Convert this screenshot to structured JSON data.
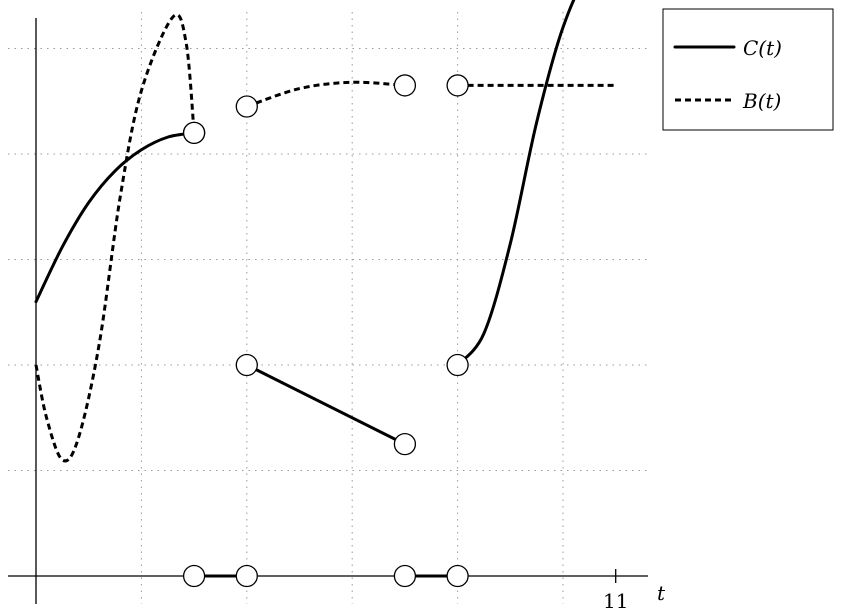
{
  "chart_data": {
    "type": "line",
    "title": "",
    "xlabel": "t",
    "ylabel": "",
    "xlim": [
      -0.5,
      11.6
    ],
    "ylim": [
      -0.6,
      5.8
    ],
    "x_ticks": [
      {
        "value": 11,
        "label": "11"
      }
    ],
    "grid": true,
    "legend": "top-right",
    "series": [
      {
        "name": "C(t)",
        "style": "solid",
        "color": "#000000",
        "segments": [
          {
            "points": [
              [
                0,
                2.6
              ],
              [
                0.5,
                3.12
              ],
              [
                1,
                3.54
              ],
              [
                1.5,
                3.84
              ],
              [
                2,
                4.04
              ],
              [
                2.5,
                4.16
              ],
              [
                3,
                4.2
              ]
            ],
            "end_marker": "open"
          },
          {
            "points": [
              [
                4,
                2.0
              ],
              [
                7,
                1.25
              ]
            ],
            "start_marker": "open",
            "end_marker": "open"
          },
          {
            "points": [
              [
                8,
                2.0
              ],
              [
                8.5,
                2.3
              ],
              [
                9,
                3.15
              ],
              [
                9.5,
                4.3
              ],
              [
                10,
                5.2
              ],
              [
                10.5,
                5.72
              ],
              [
                11,
                5.8
              ]
            ],
            "start_marker": "open"
          },
          {
            "points": [
              [
                3,
                0
              ],
              [
                4,
                0
              ]
            ],
            "start_marker": "open",
            "end_marker": "open"
          },
          {
            "points": [
              [
                7,
                0
              ],
              [
                8,
                0
              ]
            ],
            "start_marker": "open",
            "end_marker": "open"
          }
        ]
      },
      {
        "name": "B(t)",
        "style": "dashed",
        "color": "#000000",
        "segments": [
          {
            "points": [
              [
                0,
                2.0
              ],
              [
                0.2,
                1.5
              ],
              [
                0.5,
                1.1
              ],
              [
                0.8,
                1.3
              ],
              [
                1.2,
                2.2
              ],
              [
                1.6,
                3.6
              ],
              [
                2,
                4.6
              ],
              [
                2.6,
                5.3
              ],
              [
                2.85,
                5.05
              ],
              [
                3,
                4.2
              ]
            ],
            "end_marker": "open"
          },
          {
            "points": [
              [
                4,
                4.45
              ],
              [
                5,
                4.62
              ],
              [
                6,
                4.68
              ],
              [
                7,
                4.65
              ]
            ],
            "start_marker": "open",
            "end_marker": "open"
          },
          {
            "points": [
              [
                8,
                4.65
              ],
              [
                11,
                4.65
              ]
            ],
            "start_marker": "open"
          }
        ]
      }
    ]
  }
}
